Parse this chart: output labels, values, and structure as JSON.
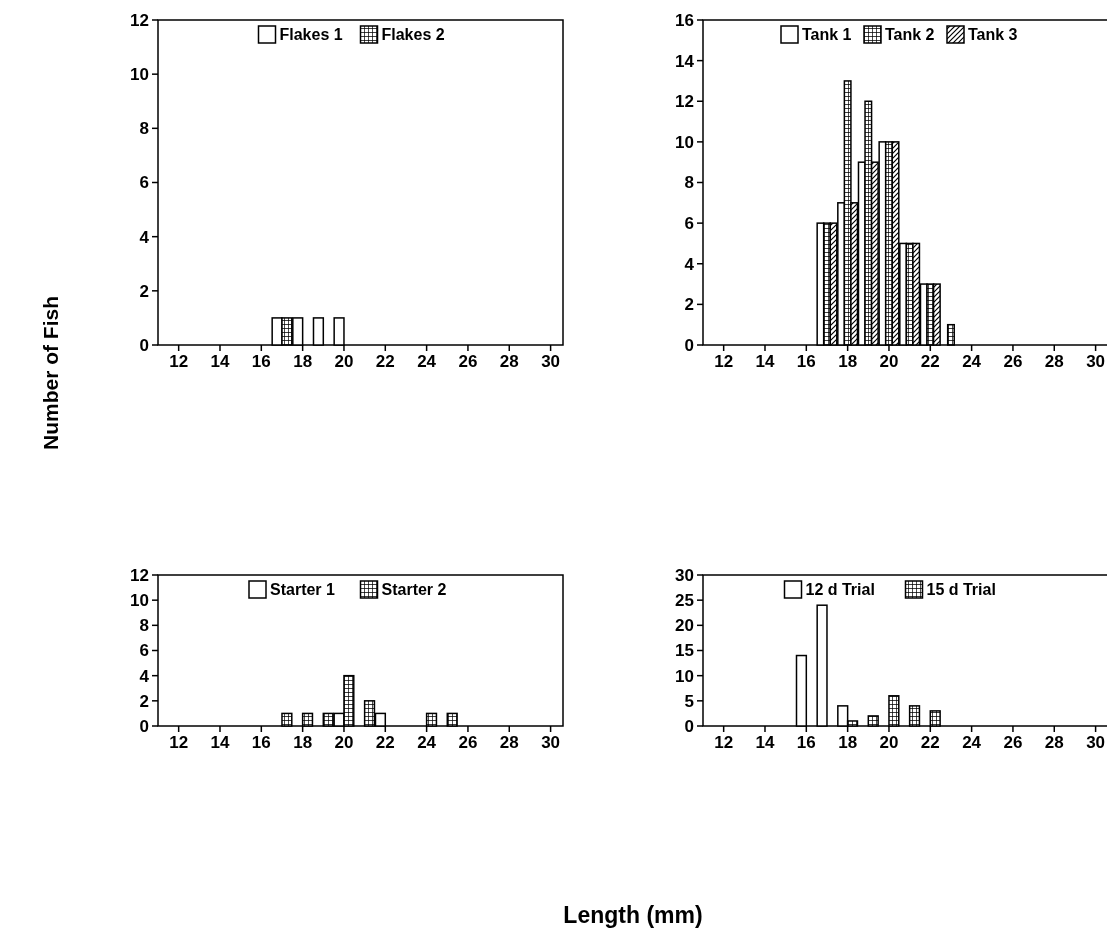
{
  "chart_data": [
    {
      "type": "bar",
      "ylabel": "Number of Fish",
      "x": [
        17,
        18,
        19,
        20
      ],
      "xlim": [
        11,
        30.6
      ],
      "xticks": [
        12,
        14,
        16,
        18,
        20,
        22,
        24,
        26,
        28,
        30
      ],
      "ylim": [
        0,
        12
      ],
      "yticks": [
        0,
        2,
        4,
        6,
        8,
        10,
        12
      ],
      "legend": "top",
      "series": [
        {
          "name": "Flakes 1",
          "color": "#ffffff",
          "values": [
            1,
            1,
            1,
            1
          ]
        },
        {
          "name": "Flakes 2",
          "color": "#000000",
          "values": [
            1,
            0,
            0,
            0
          ]
        }
      ]
    },
    {
      "type": "bar",
      "x": [
        17,
        18,
        19,
        20,
        21,
        22,
        23
      ],
      "xlim": [
        11,
        30.6
      ],
      "xticks": [
        12,
        14,
        16,
        18,
        20,
        22,
        24,
        26,
        28,
        30
      ],
      "ylim": [
        0,
        16
      ],
      "yticks": [
        0,
        2,
        4,
        6,
        8,
        10,
        12,
        14,
        16
      ],
      "legend": "top",
      "series": [
        {
          "name": "Tank 1",
          "color": "#ffffff",
          "values": [
            6,
            7,
            9,
            10,
            5,
            3,
            0
          ]
        },
        {
          "name": "Tank 2",
          "color": "#000000",
          "values": [
            6,
            13,
            12,
            10,
            5,
            3,
            1
          ]
        },
        {
          "name": "Tank 3",
          "color": "#000000",
          "values": [
            6,
            7,
            9,
            10,
            5,
            3,
            0
          ]
        }
      ]
    },
    {
      "type": "bar",
      "xlabel": "Length (mm)",
      "x": [
        17,
        18,
        19,
        20,
        21,
        22,
        24,
        25
      ],
      "xlim": [
        11,
        30.6
      ],
      "xticks": [
        12,
        14,
        16,
        18,
        20,
        22,
        24,
        26,
        28,
        30
      ],
      "ylim": [
        0,
        12
      ],
      "yticks": [
        0,
        2,
        4,
        6,
        8,
        10,
        12
      ],
      "legend": "top",
      "series": [
        {
          "name": "Starter 1",
          "color": "#ffffff",
          "values": [
            0,
            0,
            0,
            1,
            0,
            1,
            0,
            0
          ]
        },
        {
          "name": "Starter 2",
          "color": "#000000",
          "values": [
            1,
            1,
            1,
            4,
            2,
            0,
            1,
            1
          ]
        }
      ]
    },
    {
      "type": "bar",
      "x": [
        16,
        17,
        18,
        19,
        20,
        21,
        22
      ],
      "xlim": [
        11,
        30.6
      ],
      "xticks": [
        12,
        14,
        16,
        18,
        20,
        22,
        24,
        26,
        28,
        30
      ],
      "ylim": [
        0,
        30
      ],
      "yticks": [
        0,
        5,
        10,
        15,
        20,
        25,
        30
      ],
      "legend": "top",
      "series": [
        {
          "name": "12 d Trial",
          "color": "#ffffff",
          "values": [
            14,
            24,
            4,
            0,
            0,
            0,
            0
          ]
        },
        {
          "name": "15 d Trial",
          "color": "#000000",
          "values": [
            0,
            0,
            1,
            2,
            6,
            4,
            3
          ]
        }
      ]
    }
  ]
}
